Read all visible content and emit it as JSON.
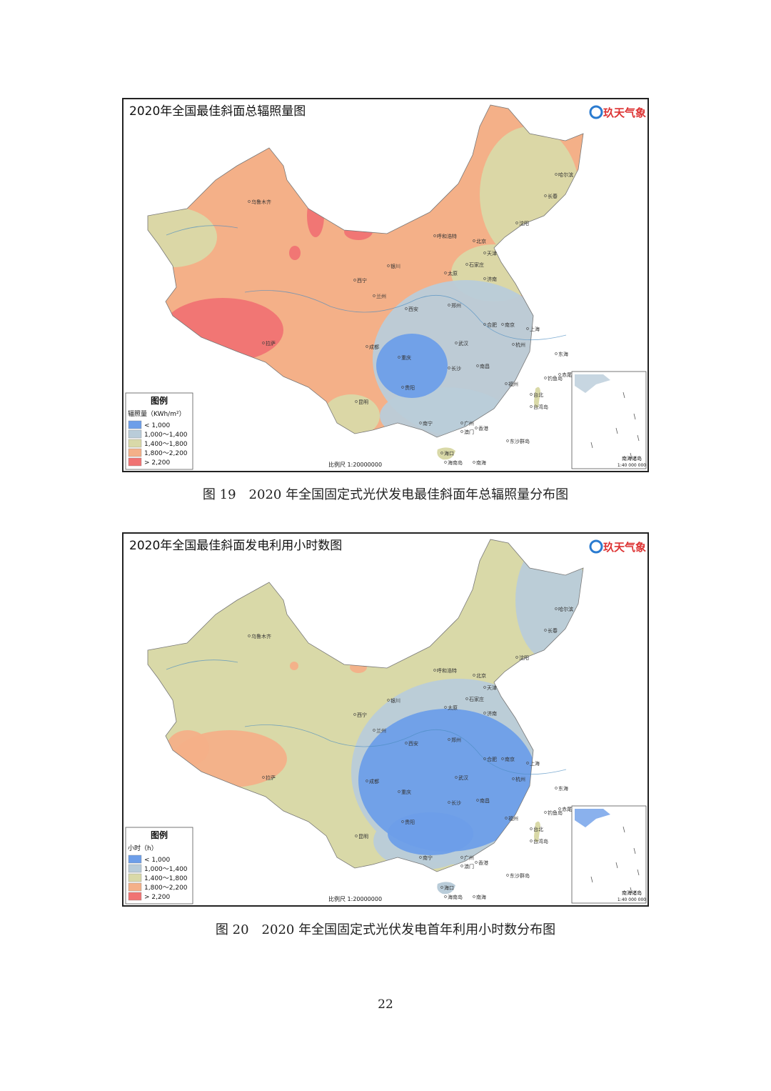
{
  "figures": [
    {
      "map_title": "2020年全国最佳斜面总辐照量图",
      "logo": "玖天气象",
      "legend_title": "图例",
      "legend_unit": "辐照量（KWh/m²）",
      "legend_items": [
        "< 1,000",
        "1,000～1,400",
        "1,400～1,800",
        "1,800～2,200",
        "> 2,200"
      ],
      "legend_colors": [
        "#6d9ee9",
        "#b9ccd9",
        "#d9d9a8",
        "#f4b088",
        "#f07373"
      ],
      "scale": "比例尺 1:20000000",
      "inset_label": "南海诸岛",
      "inset_scale": "1:40 000 000",
      "cities": [
        "乌鲁木齐",
        "呼和浩特",
        "哈尔滨",
        "长春",
        "沈阳",
        "北京",
        "天津",
        "石家庄",
        "太原",
        "济南",
        "银川",
        "西宁",
        "兰州",
        "西安",
        "郑州",
        "合肥",
        "南京",
        "上海",
        "杭州",
        "武汉",
        "成都",
        "重庆",
        "长沙",
        "南昌",
        "福州",
        "贵阳",
        "昆明",
        "拉萨",
        "南宁",
        "广州",
        "香港",
        "澳门",
        "海口",
        "台北",
        "台湾岛",
        "东沙群岛",
        "钓鱼岛",
        "赤尾屿",
        "东海",
        "南海",
        "海南岛"
      ],
      "caption": "图 19　2020 年全国固定式光伏发电最佳斜面年总辐照量分布图"
    },
    {
      "map_title": "2020年全国最佳斜面发电利用小时数图",
      "logo": "玖天气象",
      "legend_title": "图例",
      "legend_unit": "小时（h）",
      "legend_items": [
        "< 1,000",
        "1,000～1,400",
        "1,400～1,800",
        "1,800～2,200",
        "> 2,200"
      ],
      "legend_colors": [
        "#6d9ee9",
        "#b9ccd9",
        "#d9d9a8",
        "#f4b088",
        "#f07373"
      ],
      "scale": "比例尺 1:20000000",
      "inset_label": "南海诸岛",
      "inset_scale": "1:40 000 000",
      "cities": [
        "乌鲁木齐",
        "呼和浩特",
        "哈尔滨",
        "长春",
        "沈阳",
        "北京",
        "天津",
        "石家庄",
        "太原",
        "济南",
        "银川",
        "西宁",
        "兰州",
        "西安",
        "郑州",
        "合肥",
        "南京",
        "上海",
        "杭州",
        "武汉",
        "成都",
        "重庆",
        "长沙",
        "南昌",
        "福州",
        "贵阳",
        "昆明",
        "拉萨",
        "南宁",
        "广州",
        "香港",
        "澳门",
        "海口",
        "台北",
        "台湾岛",
        "东沙群岛",
        "钓鱼岛",
        "赤尾屿",
        "东海",
        "南海",
        "海南岛"
      ],
      "caption": "图 20　2020 年全国固定式光伏发电首年利用小时数分布图"
    }
  ],
  "page_number": "22"
}
